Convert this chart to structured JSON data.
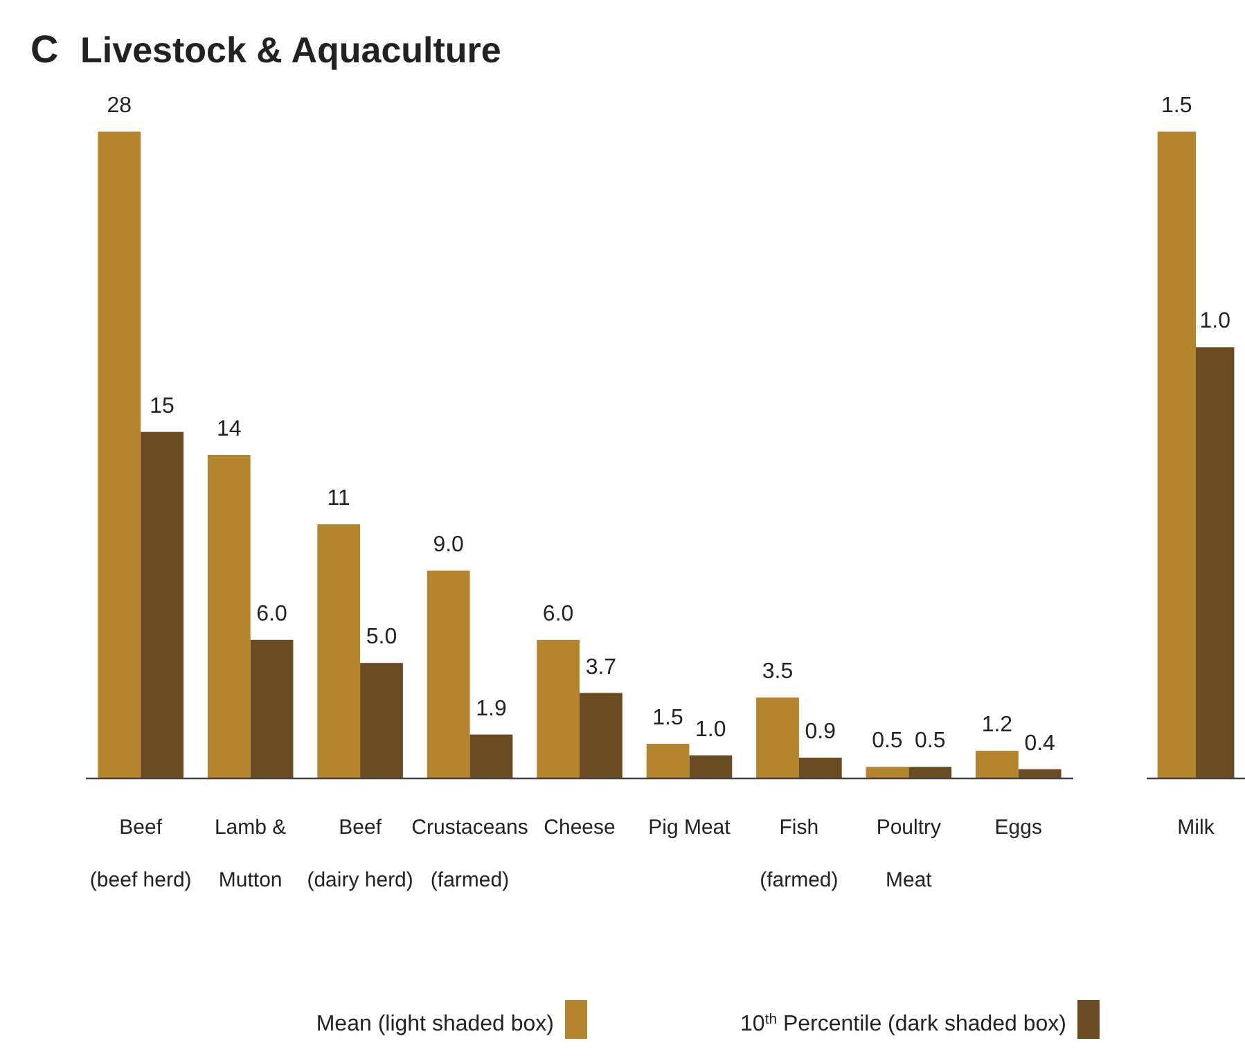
{
  "chart_data": [
    {
      "type": "bar",
      "title": "Livestock & Aquaculture",
      "annotations": [
        "C"
      ],
      "categories": [
        "Beef\n(beef herd)",
        "Lamb &\nMutton",
        "Beef\n(dairy herd)",
        "Crustaceans\n(farmed)",
        "Cheese",
        "Pig Meat",
        "Fish\n(farmed)",
        "Poultry\nMeat",
        "Eggs"
      ],
      "series": [
        {
          "name": "Mean (light shaded box)",
          "color": "#b5852e",
          "values": [
            28,
            14,
            11,
            9.0,
            6.0,
            1.5,
            3.5,
            0.5,
            1.2
          ],
          "value_labels": [
            "28",
            "14",
            "11",
            "9.0",
            "6.0",
            "1.5",
            "3.5",
            "0.5",
            "1.2"
          ]
        },
        {
          "name": "10$^{th}$ Percentile (dark shaded box)",
          "color": "#6b4c22",
          "values": [
            15,
            6.0,
            5.0,
            1.9,
            3.7,
            1.0,
            0.9,
            0.5,
            0.4
          ],
          "value_labels": [
            "15",
            "6.0",
            "5.0",
            "1.9",
            "3.7",
            "1.0",
            "0.9",
            "0.5",
            "0.4"
          ]
        }
      ],
      "tick_labels": "x",
      "legend": "bottom"
    },
    {
      "type": "bar",
      "categories": [
        "Milk"
      ],
      "series": [
        {
          "color": "#b5852e",
          "values": [
            1.5
          ],
          "value_labels": [
            "1.5"
          ]
        },
        {
          "color": "#6b4c22",
          "values": [
            1.0
          ],
          "value_labels": [
            "1.0"
          ]
        }
      ],
      "tick_labels": "x"
    }
  ]
}
